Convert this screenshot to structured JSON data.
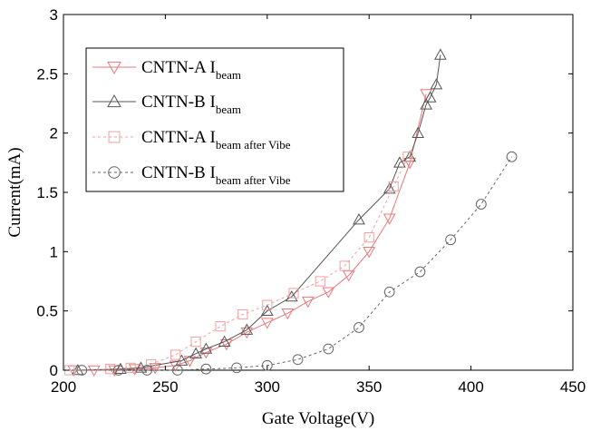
{
  "chart_data": {
    "type": "line",
    "xlabel": "Gate Voltage(V)",
    "ylabel": "Current(mA)",
    "xlim": [
      200,
      450
    ],
    "ylim": [
      0,
      3
    ],
    "xticks": [
      200,
      250,
      300,
      350,
      400,
      450
    ],
    "yticks": [
      0,
      0.5,
      1,
      1.5,
      2,
      2.5,
      3
    ],
    "ytick_labels": [
      "0",
      "0.5",
      "1",
      "1.5",
      "2",
      "2.5",
      "3"
    ],
    "grid": false,
    "legend_position": "top-left",
    "series": [
      {
        "name": "CNTN-A I",
        "name_sub": "beam",
        "color": "#e8787a",
        "dash": "solid",
        "marker": "triangle-down",
        "x": [
          205,
          215,
          225,
          235,
          245,
          255,
          262,
          270,
          280,
          290,
          300,
          310,
          320,
          330,
          340,
          350,
          360,
          370,
          378
        ],
        "y": [
          0,
          0,
          0,
          0.01,
          0.02,
          0.04,
          0.08,
          0.15,
          0.22,
          0.32,
          0.4,
          0.48,
          0.58,
          0.66,
          0.8,
          1.0,
          1.28,
          1.75,
          2.33
        ]
      },
      {
        "name": "CNTN-B I",
        "name_sub": "beam",
        "color": "#555555",
        "dash": "solid",
        "marker": "triangle-up",
        "x": [
          207,
          228,
          238,
          258,
          265,
          270,
          279,
          290,
          300,
          312,
          345,
          360,
          365,
          370,
          374,
          378,
          380,
          383,
          385
        ],
        "y": [
          0,
          0.01,
          0.02,
          0.08,
          0.14,
          0.18,
          0.24,
          0.34,
          0.5,
          0.62,
          1.27,
          1.53,
          1.75,
          1.8,
          2.0,
          2.24,
          2.3,
          2.41,
          2.66
        ]
      },
      {
        "name": "CNTN-A I",
        "name_sub": "beam after Vibe",
        "color": "#f0a0a0",
        "dash": "dashed",
        "marker": "square",
        "x": [
          203,
          223,
          233,
          243,
          255,
          265,
          277,
          288,
          300,
          313,
          326,
          338,
          350,
          362,
          369
        ],
        "y": [
          0,
          0.01,
          0.02,
          0.05,
          0.13,
          0.24,
          0.37,
          0.47,
          0.55,
          0.65,
          0.75,
          0.88,
          1.12,
          1.55,
          1.8
        ]
      },
      {
        "name": "CNTN-B I",
        "name_sub": "beam after Vibe",
        "color": "#666666",
        "dash": "dashed",
        "marker": "circle",
        "x": [
          209,
          227,
          241,
          256,
          270,
          285,
          300,
          315,
          330,
          345,
          360,
          375,
          390,
          405,
          420
        ],
        "y": [
          0,
          0,
          0,
          0,
          0.01,
          0.02,
          0.04,
          0.09,
          0.18,
          0.36,
          0.66,
          0.83,
          1.1,
          1.4,
          1.8
        ]
      }
    ]
  }
}
